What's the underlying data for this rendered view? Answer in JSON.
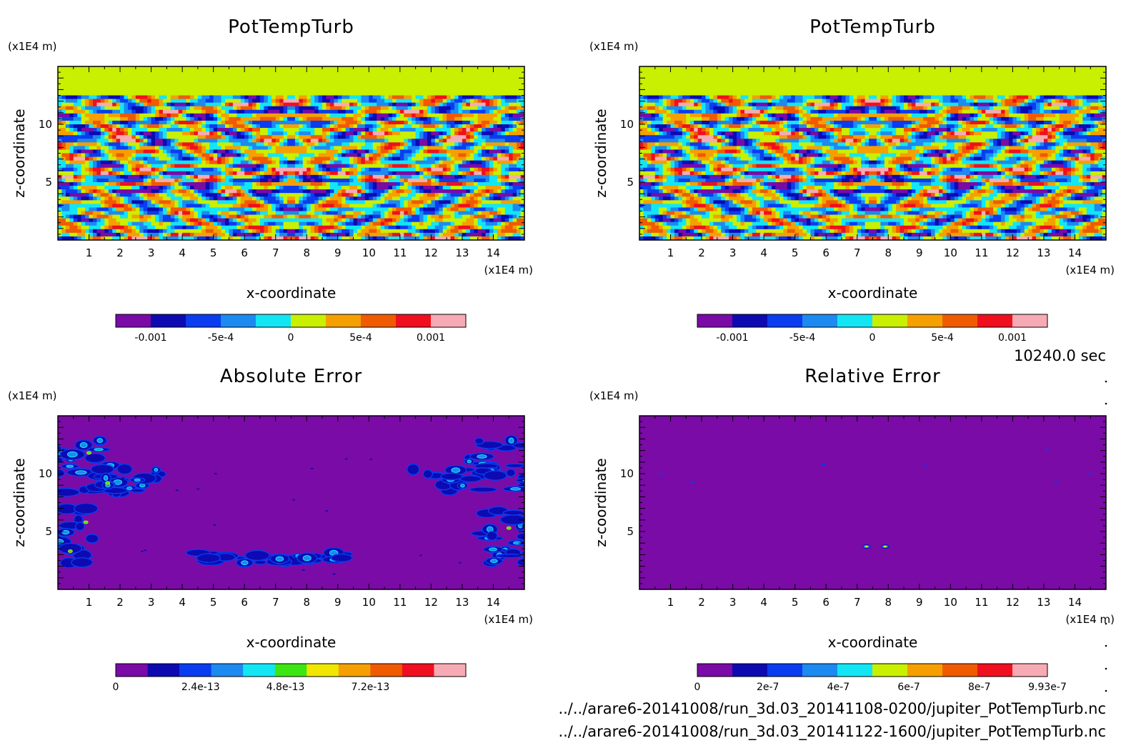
{
  "footer": {
    "time": "10240.0 sec",
    "file1": "../../arare6-20141008/run_3d.03_20141108-0200/jupiter_PotTempTurb.nc",
    "file2": "../../arare6-20141008/run_3d.03_20141122-1600/jupiter_PotTempTurb.nc"
  },
  "colors": {
    "turb_palette": [
      "#7a0ba6",
      "#0d0ab2",
      "#0a3cf0",
      "#1c8af0",
      "#12e6f5",
      "#c8f000",
      "#f5a000",
      "#f05a00",
      "#f00f1e",
      "#f7aab4"
    ],
    "abs_palette": [
      "#7a0ba6",
      "#0d0ab2",
      "#0a3cf0",
      "#1c8af0",
      "#12e6f5",
      "#3ce612",
      "#f0e600",
      "#f5a000",
      "#f05a00",
      "#f00f1e",
      "#f7aab4"
    ],
    "rel_palette": [
      "#7a0ba6",
      "#0d0ab2",
      "#0a3cf0",
      "#1c8af0",
      "#12e6f5",
      "#c8f000",
      "#f5a000",
      "#f05a00",
      "#f00f1e",
      "#f7aab4"
    ]
  },
  "chart_data": [
    {
      "type": "heatmap",
      "title": "PotTempTurb",
      "xlabel": "x-coordinate",
      "ylabel": "z-coordinate",
      "x_unit": "(x1E4 m)",
      "y_unit": "(x1E4 m)",
      "xlim": [
        0,
        15
      ],
      "ylim": [
        0,
        15
      ],
      "x_ticks": [
        "1",
        "2",
        "3",
        "4",
        "5",
        "6",
        "7",
        "8",
        "9",
        "10",
        "11",
        "12",
        "13",
        "14"
      ],
      "y_ticks": [
        "5",
        "10"
      ],
      "colorbar_labels": [
        "-0.001",
        "-5e-4",
        "0",
        "5e-4",
        "0.001"
      ],
      "colorbar_range": [
        -0.00125,
        0.00125
      ],
      "field": "turbulence"
    },
    {
      "type": "heatmap",
      "title": "PotTempTurb",
      "xlabel": "x-coordinate",
      "ylabel": "z-coordinate",
      "x_unit": "(x1E4 m)",
      "y_unit": "(x1E4 m)",
      "xlim": [
        0,
        15
      ],
      "ylim": [
        0,
        15
      ],
      "x_ticks": [
        "1",
        "2",
        "3",
        "4",
        "5",
        "6",
        "7",
        "8",
        "9",
        "10",
        "11",
        "12",
        "13",
        "14"
      ],
      "y_ticks": [
        "5",
        "10"
      ],
      "colorbar_labels": [
        "-0.001",
        "-5e-4",
        "0",
        "5e-4",
        "0.001"
      ],
      "colorbar_range": [
        -0.00125,
        0.00125
      ],
      "field": "turbulence"
    },
    {
      "type": "heatmap",
      "title": "Absolute Error",
      "xlabel": "x-coordinate",
      "ylabel": "z-coordinate",
      "x_unit": "(x1E4 m)",
      "y_unit": "(x1E4 m)",
      "xlim": [
        0,
        15
      ],
      "ylim": [
        0,
        15
      ],
      "x_ticks": [
        "1",
        "2",
        "3",
        "4",
        "5",
        "6",
        "7",
        "8",
        "9",
        "10",
        "11",
        "12",
        "13",
        "14"
      ],
      "y_ticks": [
        "5",
        "10"
      ],
      "colorbar_labels": [
        "0",
        "2.4e-13",
        "4.8e-13",
        "7.2e-13"
      ],
      "colorbar_range": [
        0,
        9.9e-13
      ],
      "field": "abs_error"
    },
    {
      "type": "heatmap",
      "title": "Relative Error",
      "xlabel": "x-coordinate",
      "ylabel": "z-coordinate",
      "x_unit": "(x1E4 m)",
      "y_unit": "(x1E4 m)",
      "xlim": [
        0,
        15
      ],
      "ylim": [
        0,
        15
      ],
      "x_ticks": [
        "1",
        "2",
        "3",
        "4",
        "5",
        "6",
        "7",
        "8",
        "9",
        "10",
        "11",
        "12",
        "13",
        "14"
      ],
      "y_ticks": [
        "5",
        "10"
      ],
      "colorbar_labels": [
        "0",
        "2e-7",
        "4e-7",
        "6e-7",
        "8e-7",
        "9.93e-7"
      ],
      "colorbar_range": [
        0,
        9.93e-07
      ],
      "field": "rel_error"
    }
  ]
}
